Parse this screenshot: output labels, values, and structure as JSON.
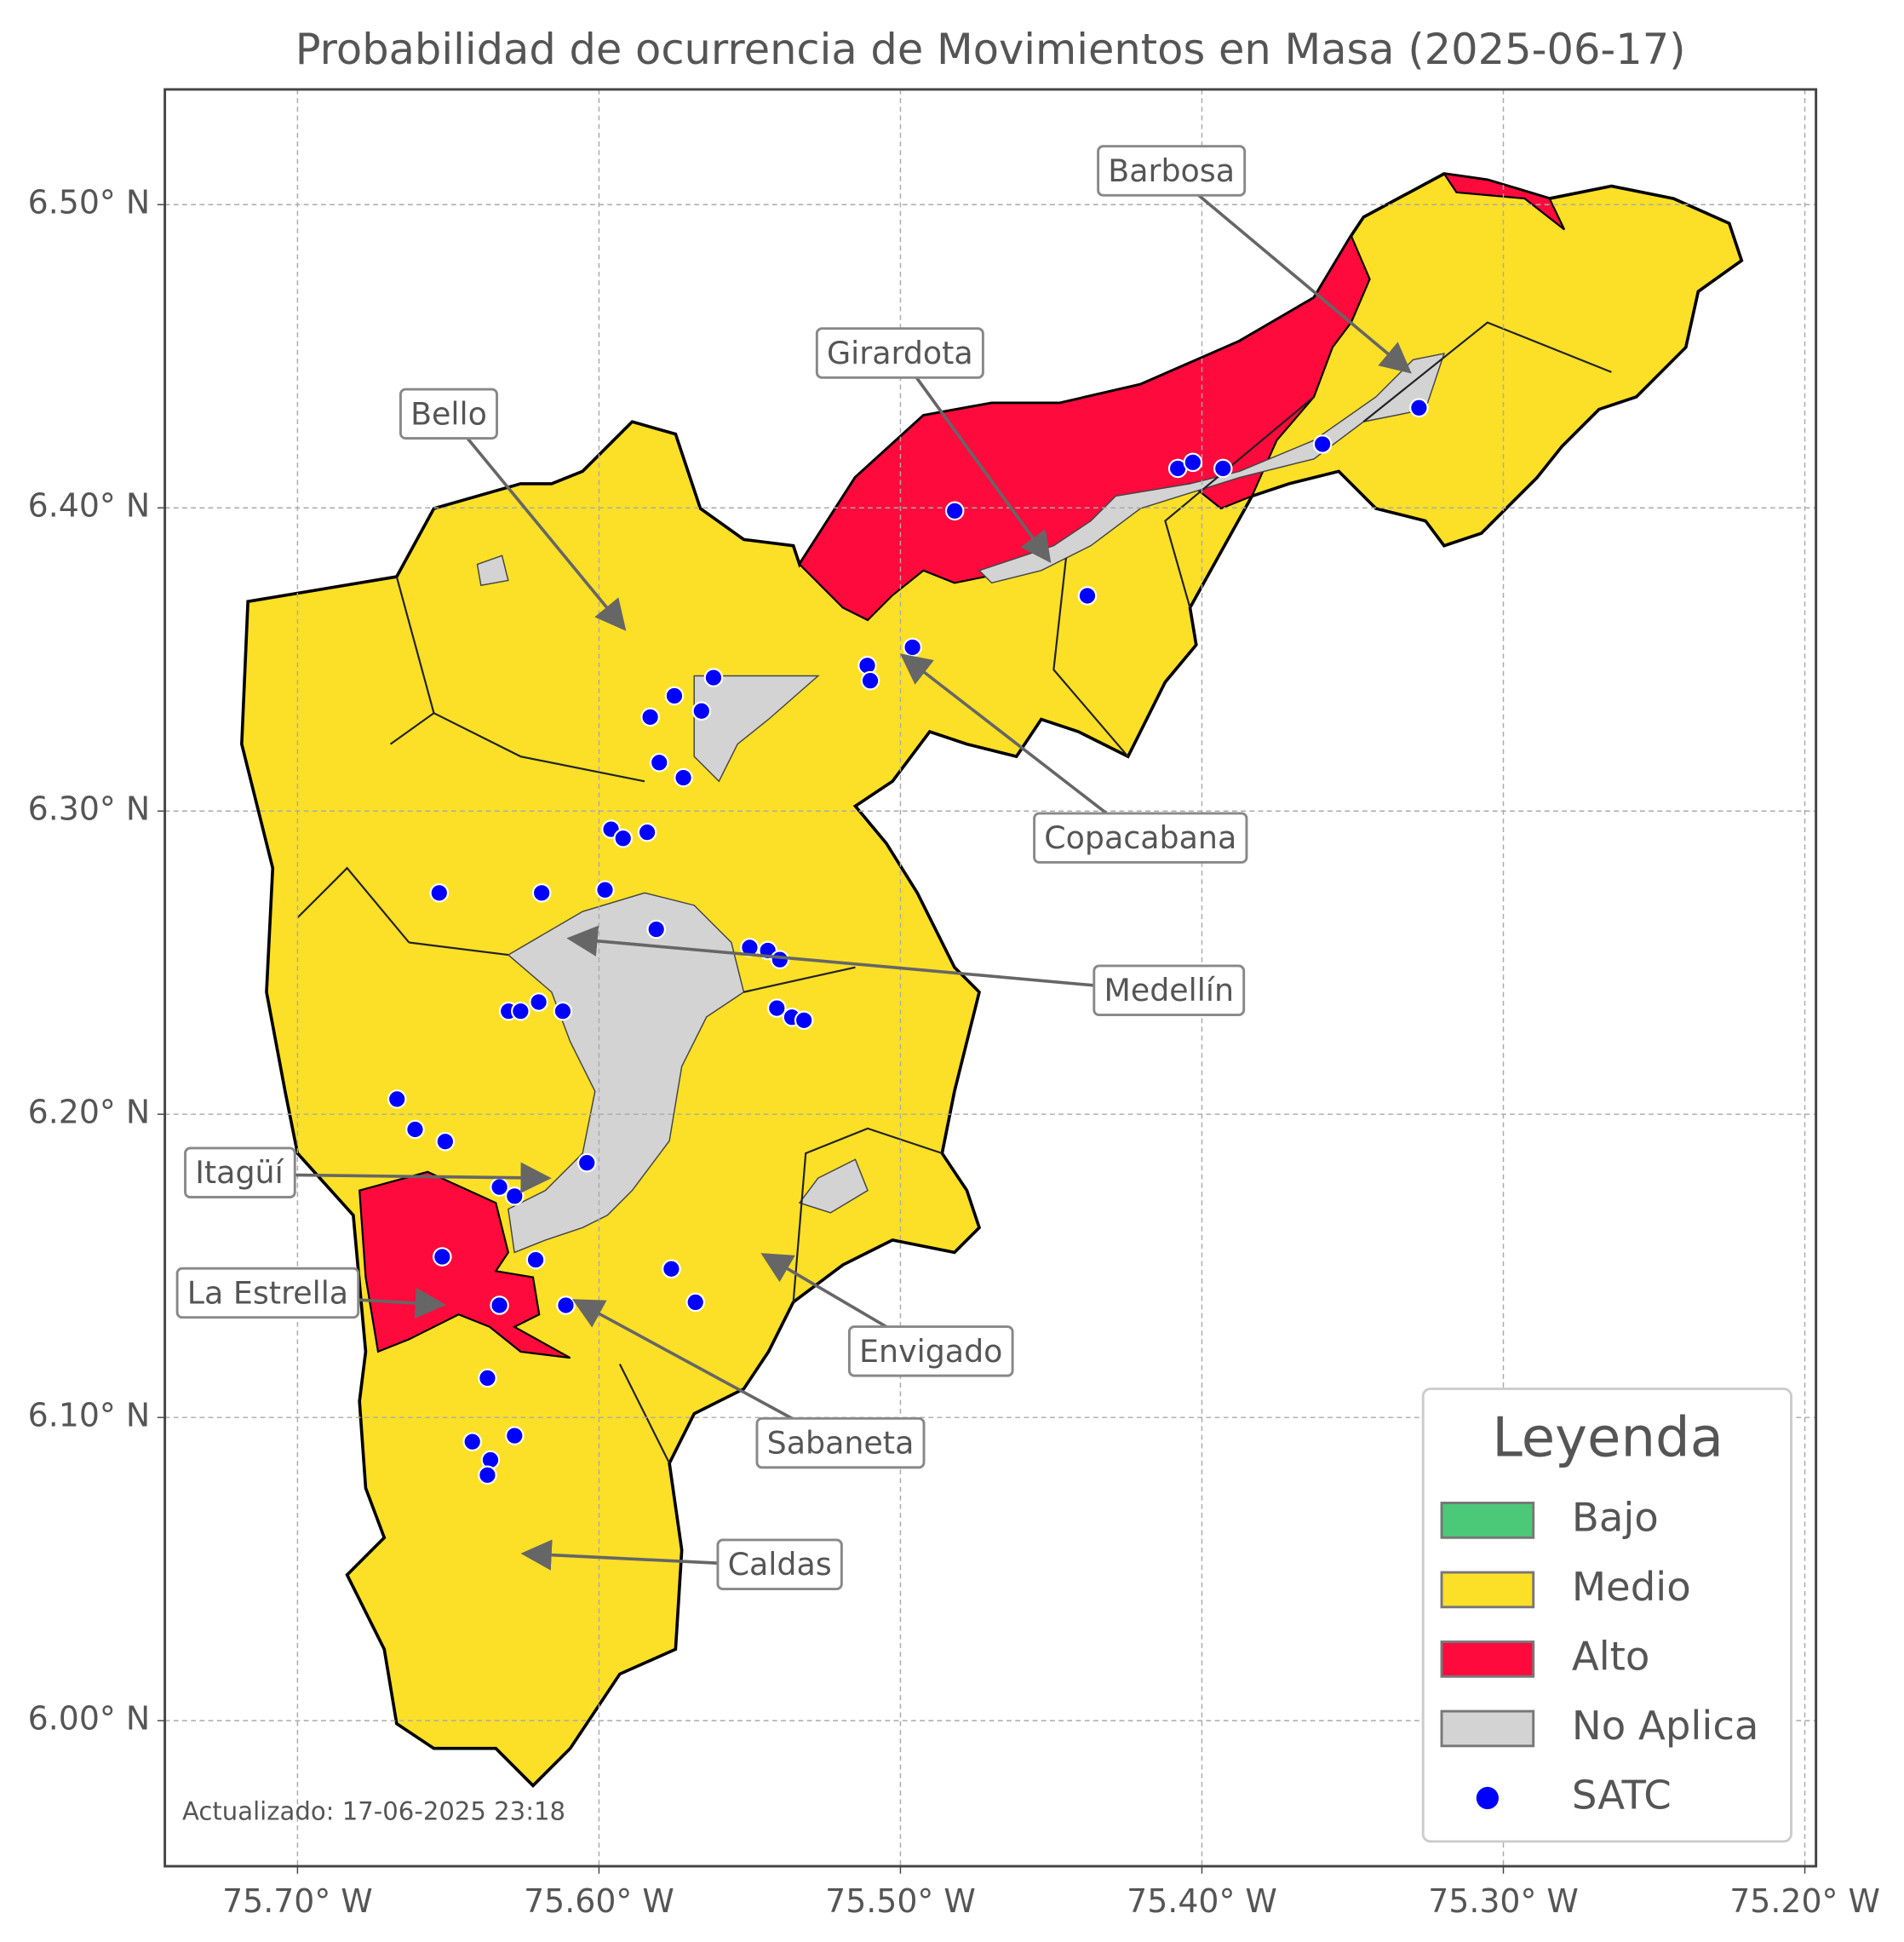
{
  "map": {
    "title": "Probabilidad de ocurrencia de Movimientos en Masa (2025-06-17)",
    "xlim": [
      -75.744,
      -75.1963
    ],
    "ylim": [
      5.952,
      6.538
    ],
    "xticks": [
      {
        "value": -75.7,
        "label": "75.70° W"
      },
      {
        "value": -75.6,
        "label": "75.60° W"
      },
      {
        "value": -75.5,
        "label": "75.50° W"
      },
      {
        "value": -75.4,
        "label": "75.40° W"
      },
      {
        "value": -75.3,
        "label": "75.30° W"
      },
      {
        "value": -75.2,
        "label": "75.20° W"
      }
    ],
    "yticks": [
      {
        "value": 6.0,
        "label": "6.00° N"
      },
      {
        "value": 6.1,
        "label": "6.10° N"
      },
      {
        "value": 6.2,
        "label": "6.20° N"
      },
      {
        "value": 6.3,
        "label": "6.30° N"
      },
      {
        "value": 6.4,
        "label": "6.40° N"
      },
      {
        "value": 6.5,
        "label": "6.50° N"
      }
    ],
    "grid": true,
    "annotations": [
      "Barbosa",
      "Girardota",
      "Bello",
      "Copacabana",
      "Medellín",
      "Itagüí",
      "La Estrella",
      "Envigado",
      "Sabaneta",
      "Caldas"
    ],
    "legend": {
      "title": "Leyenda",
      "items": [
        {
          "name": "Bajo",
          "color": "#4cc879"
        },
        {
          "name": "Medio",
          "color": "#fce027"
        },
        {
          "name": "Alto",
          "color": "#ff0a3c"
        },
        {
          "name": "No Aplica",
          "color": "#d3d3d3"
        },
        {
          "name": "SATC",
          "color": "#0000ff"
        }
      ]
    },
    "satc": {
      "lon": [
        -75.482,
        -75.408,
        -75.403,
        -75.393,
        -75.36,
        -75.328,
        -75.438,
        -75.496,
        -75.511,
        -75.51,
        -75.562,
        -75.575,
        -75.566,
        -75.583,
        -75.58,
        -75.572,
        -75.596,
        -75.592,
        -75.584,
        -75.653,
        -75.619,
        -75.598,
        -75.581,
        -75.55,
        -75.544,
        -75.54,
        -75.541,
        -75.536,
        -75.532,
        -75.63,
        -75.626,
        -75.62,
        -75.612,
        -75.667,
        -75.661,
        -75.651,
        -75.604,
        -75.633,
        -75.628,
        -75.652,
        -75.621,
        -75.576,
        -75.568,
        -75.633,
        -75.611,
        -75.637,
        -75.642,
        -75.628,
        -75.636,
        -75.637
      ],
      "lat": [
        6.399,
        6.413,
        6.415,
        6.413,
        6.421,
        6.433,
        6.371,
        6.354,
        6.348,
        6.343,
        6.344,
        6.338,
        6.333,
        6.331,
        6.316,
        6.311,
        6.294,
        6.291,
        6.293,
        6.273,
        6.273,
        6.274,
        6.261,
        6.255,
        6.254,
        6.251,
        6.235,
        6.232,
        6.231,
        6.234,
        6.234,
        6.237,
        6.234,
        6.205,
        6.195,
        6.191,
        6.184,
        6.176,
        6.173,
        6.153,
        6.152,
        6.149,
        6.138,
        6.137,
        6.137,
        6.113,
        6.092,
        6.094,
        6.086,
        6.081
      ]
    },
    "footnote": "Actualizado: 17-06-2025 23:18"
  }
}
